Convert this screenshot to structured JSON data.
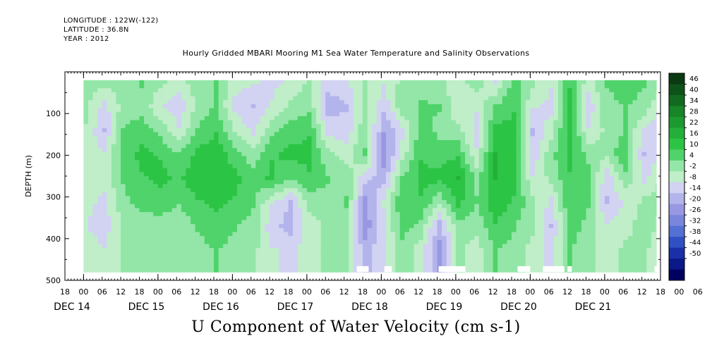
{
  "header": {
    "longitude": "LONGITUDE : 122W(-122)",
    "latitude": "LATITUDE : 36.8N",
    "year": "YEAR : 2012"
  },
  "title": "Hourly Gridded MBARI Mooring M1 Sea Water Temperature and Salinity Observations",
  "footer": "U Component of Water Velocity (cm s-1)",
  "chart_data": {
    "type": "heatmap",
    "ylabel": "DEPTH (m)",
    "ylim": [
      500,
      0
    ],
    "y_ticks": [
      100,
      200,
      300,
      400,
      500
    ],
    "x_hour_ticks": [
      "18",
      "00",
      "06",
      "12",
      "18",
      "00",
      "06",
      "12",
      "18",
      "00",
      "06",
      "12",
      "18",
      "00",
      "06",
      "12",
      "18",
      "00",
      "06",
      "12",
      "18",
      "00",
      "06",
      "12",
      "18",
      "00",
      "06",
      "12",
      "18",
      "00",
      "06",
      "12",
      "18",
      "00",
      "06",
      "12",
      "18",
      "00",
      "06",
      "12",
      "18"
    ],
    "x_date_labels": [
      "DEC 14",
      "DEC 15",
      "DEC 16",
      "DEC 17",
      "DEC 18",
      "DEC 19",
      "DEC 20",
      "DEC 21"
    ],
    "x_range": [
      "2012-12-14 18:00",
      "2012-12-22 18:00"
    ],
    "data_range_depth": [
      20,
      480
    ],
    "data_start": "2012-12-15 00:00",
    "colorbar": {
      "labels": [
        "46",
        "40",
        "34",
        "28",
        "22",
        "16",
        "10",
        "4",
        "-2",
        "-8",
        "-14",
        "-20",
        "-26",
        "-32",
        "-38",
        "-44",
        "-50"
      ],
      "colors": [
        "#0a3a12",
        "#0e5219",
        "#126a20",
        "#178528",
        "#1c9a30",
        "#23b03a",
        "#2cc445",
        "#4fd36a",
        "#93e6a7",
        "#bfeec8",
        "#d2d2f2",
        "#b4b4ec",
        "#9898e2",
        "#7a86dc",
        "#5470d4",
        "#3050c4",
        "#1a30a8",
        "#0a1888",
        "#000060"
      ]
    },
    "columns": [
      {
        "t": 0.0,
        "p": [
          3,
          2,
          0,
          -2,
          -2,
          -3,
          -4,
          -2
        ]
      },
      {
        "t": 0.25,
        "p": [
          2,
          -6,
          -10,
          -4,
          -2,
          -6,
          -8,
          -4
        ]
      },
      {
        "t": 0.5,
        "p": [
          4,
          2,
          6,
          8,
          6,
          4,
          2,
          2
        ]
      },
      {
        "t": 0.75,
        "p": [
          6,
          4,
          8,
          12,
          10,
          8,
          2,
          2
        ]
      },
      {
        "t": 1.0,
        "p": [
          2,
          -4,
          4,
          10,
          12,
          8,
          4,
          2
        ]
      },
      {
        "t": 1.25,
        "p": [
          -2,
          -8,
          -4,
          6,
          10,
          6,
          2,
          2
        ]
      },
      {
        "t": 1.5,
        "p": [
          4,
          2,
          6,
          12,
          14,
          10,
          6,
          4
        ]
      },
      {
        "t": 1.75,
        "p": [
          6,
          6,
          10,
          14,
          14,
          12,
          8,
          6
        ]
      },
      {
        "t": 2.0,
        "p": [
          -2,
          -6,
          0,
          8,
          12,
          10,
          6,
          4
        ]
      },
      {
        "t": 2.25,
        "p": [
          -4,
          -10,
          -6,
          2,
          8,
          6,
          4,
          2
        ]
      },
      {
        "t": 2.5,
        "p": [
          -6,
          -4,
          4,
          10,
          12,
          -4,
          -8,
          -4
        ]
      },
      {
        "t": 2.75,
        "p": [
          -4,
          2,
          8,
          12,
          6,
          -10,
          -12,
          -6
        ]
      },
      {
        "t": 3.0,
        "p": [
          2,
          4,
          10,
          12,
          10,
          2,
          -2,
          -2
        ]
      },
      {
        "t": 3.25,
        "p": [
          -8,
          -12,
          -6,
          2,
          6,
          4,
          2,
          2
        ]
      },
      {
        "t": 3.5,
        "p": [
          -6,
          -10,
          -8,
          -2,
          4,
          6,
          4,
          2
        ]
      },
      {
        "t": 3.75,
        "p": [
          2,
          2,
          4,
          6,
          -8,
          -16,
          -18,
          -12
        ]
      },
      {
        "t": 4.0,
        "p": [
          -4,
          -8,
          -14,
          -18,
          -12,
          -4,
          -6,
          -6
        ]
      },
      {
        "t": 4.25,
        "p": [
          2,
          4,
          -6,
          -2,
          6,
          10,
          8,
          4
        ]
      },
      {
        "t": 4.5,
        "p": [
          4,
          6,
          8,
          10,
          12,
          10,
          4,
          -2
        ]
      },
      {
        "t": 4.75,
        "p": [
          2,
          6,
          4,
          8,
          12,
          2,
          -12,
          -16
        ]
      },
      {
        "t": 5.0,
        "p": [
          -2,
          -4,
          2,
          10,
          16,
          12,
          4,
          2
        ]
      },
      {
        "t": 5.25,
        "p": [
          4,
          -4,
          -6,
          -4,
          4,
          6,
          2,
          -2
        ]
      },
      {
        "t": 5.5,
        "p": [
          -6,
          6,
          12,
          16,
          16,
          14,
          10,
          6
        ]
      },
      {
        "t": 5.75,
        "p": [
          8,
          10,
          12,
          14,
          12,
          10,
          6,
          4
        ]
      },
      {
        "t": 6.0,
        "p": [
          2,
          -4,
          -10,
          -8,
          -4,
          2,
          2,
          -2
        ]
      },
      {
        "t": 6.25,
        "p": [
          -4,
          -6,
          -2,
          4,
          2,
          -6,
          -10,
          -6
        ]
      },
      {
        "t": 6.5,
        "p": [
          10,
          12,
          14,
          12,
          10,
          10,
          8,
          6
        ]
      },
      {
        "t": 6.75,
        "p": [
          -2,
          -8,
          -4,
          4,
          8,
          6,
          4,
          2
        ]
      },
      {
        "t": 7.0,
        "p": [
          6,
          4,
          2,
          2,
          -8,
          -10,
          -4,
          -2
        ]
      },
      {
        "t": 7.25,
        "p": [
          8,
          6,
          6,
          10,
          4,
          -4,
          -2,
          2
        ]
      },
      {
        "t": 7.5,
        "p": [
          6,
          4,
          -6,
          -10,
          -6,
          2,
          4,
          2
        ]
      },
      {
        "t": 7.75,
        "p": [
          4,
          -6,
          -10,
          -4,
          2,
          2,
          -2,
          -4
        ]
      }
    ],
    "gaps_bottom": [
      [
        3.67,
        3.83
      ],
      [
        4.04,
        4.14
      ],
      [
        4.77,
        5.13
      ],
      [
        5.83,
        6.0
      ],
      [
        6.17,
        6.46
      ],
      [
        6.5,
        6.56
      ],
      [
        7.67,
        7.83
      ]
    ]
  }
}
